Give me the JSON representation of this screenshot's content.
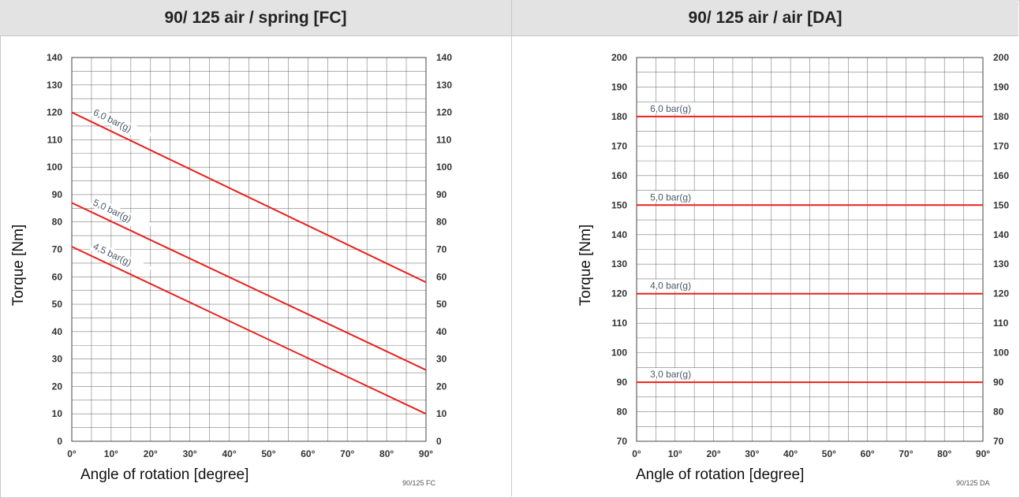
{
  "panels": {
    "left": {
      "title": "90/ 125 air / spring [FC]",
      "code": "90/125 FC"
    },
    "right": {
      "title": "90/ 125 air / air [DA]",
      "code": "90/125 DA"
    }
  },
  "colors": {
    "line": "#e8211c",
    "grid": "#555555",
    "header_bg": "#e3e3e3"
  },
  "chart_data": [
    {
      "type": "line",
      "title": "90/ 125 air / spring [FC]",
      "xlabel": "Angle of rotation    [degree]",
      "ylabel": "Torque   [Nm]",
      "xlim": [
        0,
        90
      ],
      "ylim": [
        0,
        140
      ],
      "x_ticks": [
        0,
        10,
        20,
        30,
        40,
        50,
        60,
        70,
        80,
        90
      ],
      "x_tick_labels": [
        "0°",
        "10°",
        "20°",
        "30°",
        "40°",
        "50°",
        "60°",
        "70°",
        "80°",
        "90°"
      ],
      "y_ticks": [
        0,
        10,
        20,
        30,
        40,
        50,
        60,
        70,
        80,
        90,
        100,
        110,
        120,
        130,
        140
      ],
      "y_ticks_right": true,
      "grid": true,
      "series": [
        {
          "name": "6,0 bar(g)",
          "x": [
            0,
            90
          ],
          "y": [
            120,
            58
          ]
        },
        {
          "name": "5,0 bar(g)",
          "x": [
            0,
            90
          ],
          "y": [
            87,
            26
          ]
        },
        {
          "name": "4,5 bar(g)",
          "x": [
            0,
            90
          ],
          "y": [
            71,
            10
          ]
        }
      ]
    },
    {
      "type": "line",
      "title": "90/ 125 air / air [DA]",
      "xlabel": "Angle of rotation    [degree]",
      "ylabel": "Torque   [Nm]",
      "xlim": [
        0,
        90
      ],
      "ylim": [
        70,
        200
      ],
      "x_ticks": [
        0,
        10,
        20,
        30,
        40,
        50,
        60,
        70,
        80,
        90
      ],
      "x_tick_labels": [
        "0°",
        "10°",
        "20°",
        "30°",
        "40°",
        "50°",
        "60°",
        "70°",
        "80°",
        "90°"
      ],
      "y_ticks": [
        70,
        80,
        90,
        100,
        110,
        120,
        130,
        140,
        150,
        160,
        170,
        180,
        190,
        200
      ],
      "y_ticks_right": true,
      "grid": true,
      "series": [
        {
          "name": "6,0 bar(g)",
          "x": [
            0,
            90
          ],
          "y": [
            180,
            180
          ]
        },
        {
          "name": "5,0 bar(g)",
          "x": [
            0,
            90
          ],
          "y": [
            150,
            150
          ]
        },
        {
          "name": "4,0 bar(g)",
          "x": [
            0,
            90
          ],
          "y": [
            120,
            120
          ]
        },
        {
          "name": "3,0 bar(g)",
          "x": [
            0,
            90
          ],
          "y": [
            90,
            90
          ]
        }
      ]
    }
  ]
}
